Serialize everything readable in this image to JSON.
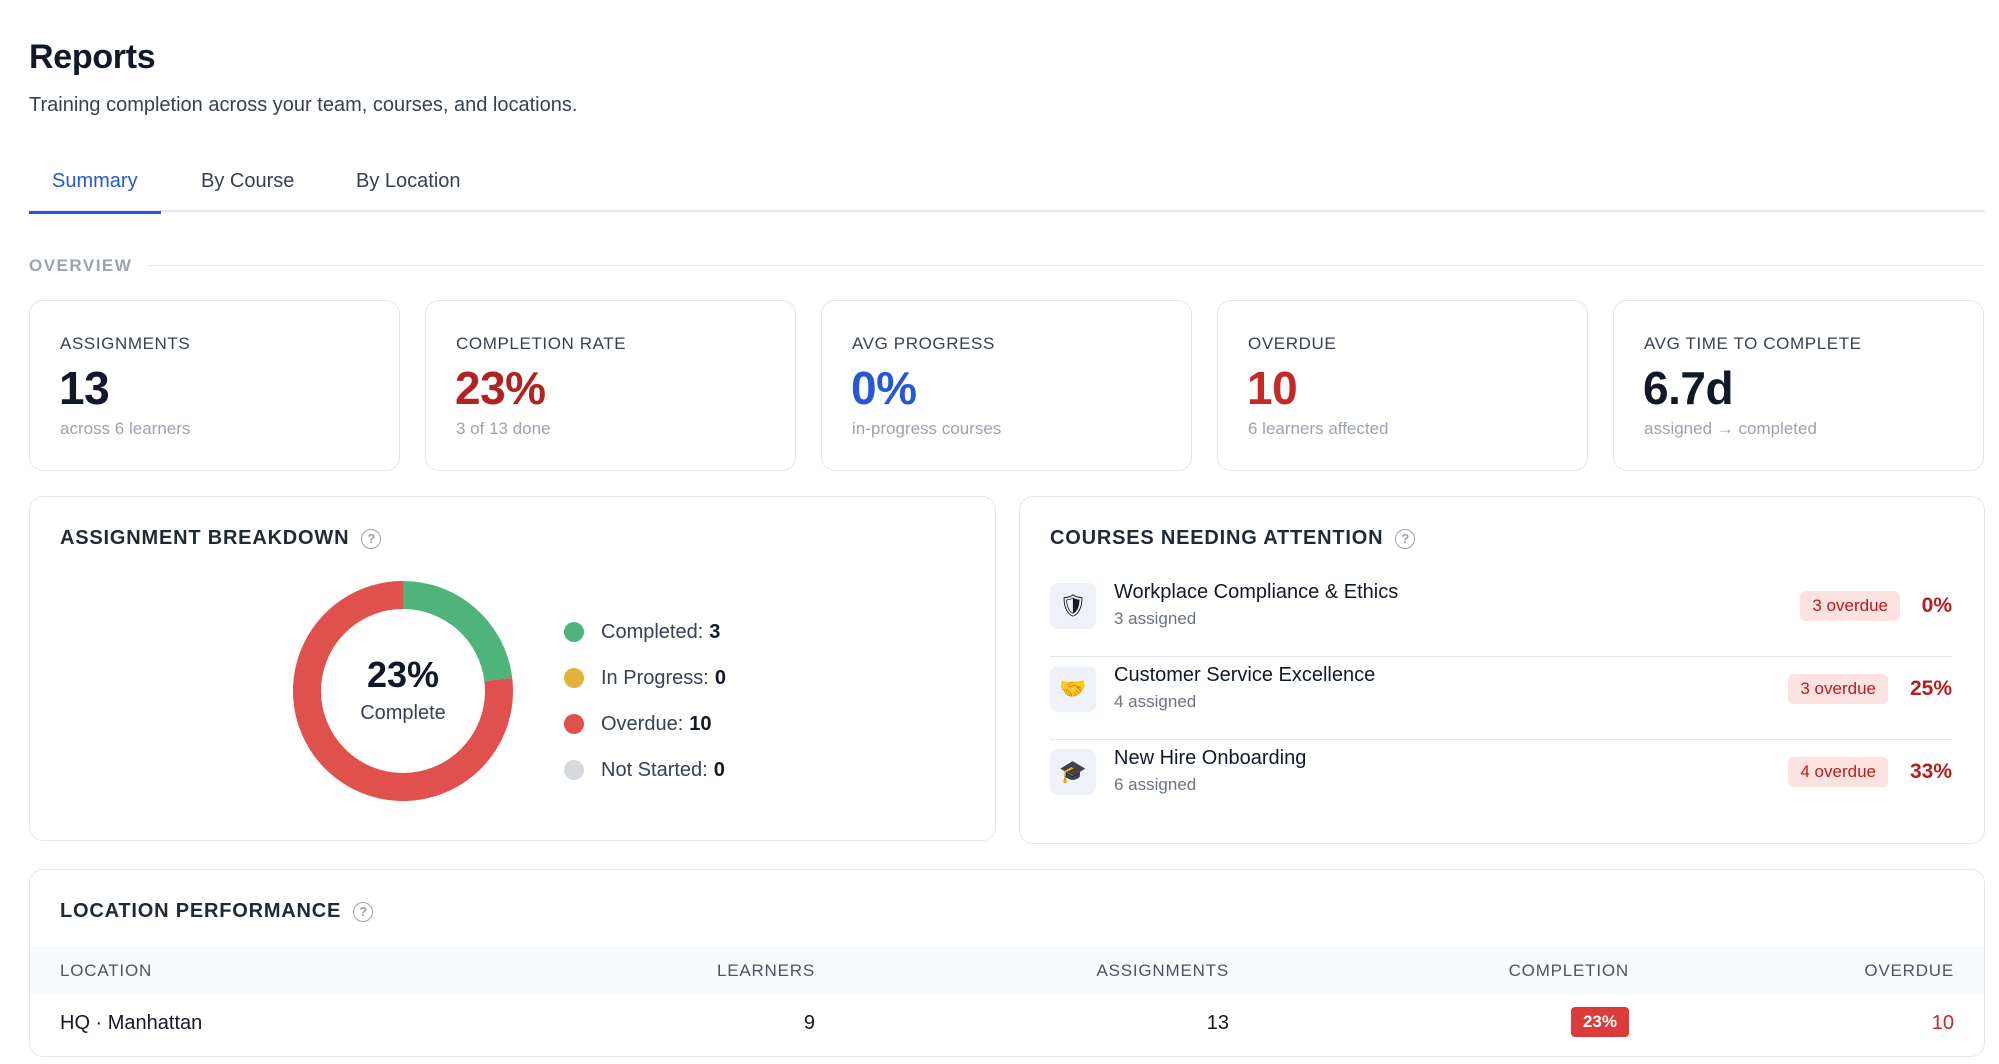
{
  "header": {
    "title": "Reports",
    "subtitle": "Training completion across your team, courses, and locations."
  },
  "tabs": [
    {
      "label": "Summary",
      "active": true
    },
    {
      "label": "By Course",
      "active": false
    },
    {
      "label": "By Location",
      "active": false
    }
  ],
  "overview": {
    "label": "OVERVIEW",
    "stats": [
      {
        "label": "ASSIGNMENTS",
        "value": "13",
        "sub": "across 6 learners",
        "color": "#111827"
      },
      {
        "label": "COMPLETION RATE",
        "value": "23%",
        "sub": "3 of 13 done",
        "color": "#b32222"
      },
      {
        "label": "AVG PROGRESS",
        "value": "0%",
        "sub": "in-progress courses",
        "color": "#2557d6"
      },
      {
        "label": "OVERDUE",
        "value": "10",
        "sub": "6 learners affected",
        "color": "#c62828"
      },
      {
        "label": "AVG TIME TO COMPLETE",
        "value": "6.7d",
        "sub": "assigned → completed",
        "color": "#111827"
      }
    ]
  },
  "breakdown": {
    "title": "ASSIGNMENT BREAKDOWN",
    "help_icon": "?",
    "center_value": "23%",
    "center_label": "Complete",
    "legend": [
      {
        "label": "Completed:",
        "value": "3",
        "color": "#4fb47a"
      },
      {
        "label": "In Progress:",
        "value": "0",
        "color": "#e3b23c"
      },
      {
        "label": "Overdue:",
        "value": "10",
        "color": "#e0504d"
      },
      {
        "label": "Not Started:",
        "value": "0",
        "color": "#d6d9de"
      }
    ]
  },
  "chart_data": {
    "type": "pie",
    "categories": [
      "Completed",
      "In Progress",
      "Overdue",
      "Not Started"
    ],
    "values": [
      3,
      0,
      10,
      0
    ],
    "colors": [
      "#4fb47a",
      "#e3b23c",
      "#e0504d",
      "#d6d9de"
    ],
    "title": "ASSIGNMENT BREAKDOWN",
    "center_text": "23%",
    "center_subtext": "Complete"
  },
  "attention": {
    "title": "COURSES NEEDING ATTENTION",
    "help_icon": "?",
    "courses": [
      {
        "icon": "shield-icon",
        "glyph": "🛡",
        "name": "Workplace Compliance & Ethics",
        "assigned": "3 assigned",
        "overdue": "3 overdue",
        "pct": "0%"
      },
      {
        "icon": "handshake-icon",
        "glyph": "🤝",
        "name": "Customer Service Excellence",
        "assigned": "4 assigned",
        "overdue": "3 overdue",
        "pct": "25%"
      },
      {
        "icon": "graduation-cap-icon",
        "glyph": "🎓",
        "name": "New Hire Onboarding",
        "assigned": "6 assigned",
        "overdue": "4 overdue",
        "pct": "33%"
      }
    ]
  },
  "locations": {
    "title": "LOCATION PERFORMANCE",
    "help_icon": "?",
    "columns": [
      "LOCATION",
      "LEARNERS",
      "ASSIGNMENTS",
      "COMPLETION",
      "OVERDUE"
    ],
    "rows": [
      {
        "location": "HQ · Manhattan",
        "learners": "9",
        "assignments": "13",
        "completion": "23%",
        "overdue": "10"
      }
    ]
  },
  "colors": {
    "accent": "#2557d6",
    "danger": "#b91c1c",
    "border": "#e5e7eb"
  }
}
